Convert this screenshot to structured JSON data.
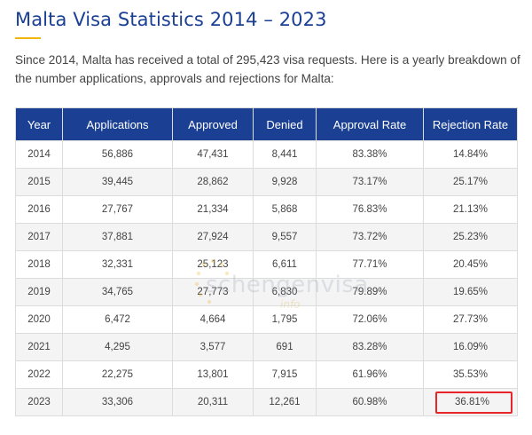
{
  "page": {
    "title": "Malta Visa Statistics 2014 – 2023",
    "intro": "Since 2014, Malta has received a total of 295,423 visa requests. Here is a yearly breakdown of the number applications, approvals and rejections for Malta:"
  },
  "table": {
    "headers": [
      "Year",
      "Applications",
      "Approved",
      "Denied",
      "Approval Rate",
      "Rejection Rate"
    ],
    "rows": [
      [
        "2014",
        "56,886",
        "47,431",
        "8,441",
        "83.38%",
        "14.84%"
      ],
      [
        "2015",
        "39,445",
        "28,862",
        "9,928",
        "73.17%",
        "25.17%"
      ],
      [
        "2016",
        "27,767",
        "21,334",
        "5,868",
        "76.83%",
        "21.13%"
      ],
      [
        "2017",
        "37,881",
        "27,924",
        "9,557",
        "73.72%",
        "25.23%"
      ],
      [
        "2018",
        "32,331",
        "25,123",
        "6,611",
        "77.71%",
        "20.45%"
      ],
      [
        "2019",
        "34,765",
        "27,773",
        "6,830",
        "79.89%",
        "19.65%"
      ],
      [
        "2020",
        "6,472",
        "4,664",
        "1,795",
        "72.06%",
        "27.73%"
      ],
      [
        "2021",
        "4,295",
        "3,577",
        "691",
        "83.28%",
        "16.09%"
      ],
      [
        "2022",
        "22,275",
        "13,801",
        "7,915",
        "61.96%",
        "35.53%"
      ],
      [
        "2023",
        "33,306",
        "20,311",
        "12,261",
        "60.98%",
        "36.81%"
      ]
    ],
    "highlighted_cell": "36.81%"
  },
  "watermark": {
    "text": "schengenvisa",
    "sub": "info"
  },
  "colors": {
    "title": "#1a3f93",
    "header_bg": "#1a3f93",
    "accent_underline": "#f2b705",
    "highlight_border": "#e8262a",
    "row_alt_bg": "#f4f4f4"
  }
}
